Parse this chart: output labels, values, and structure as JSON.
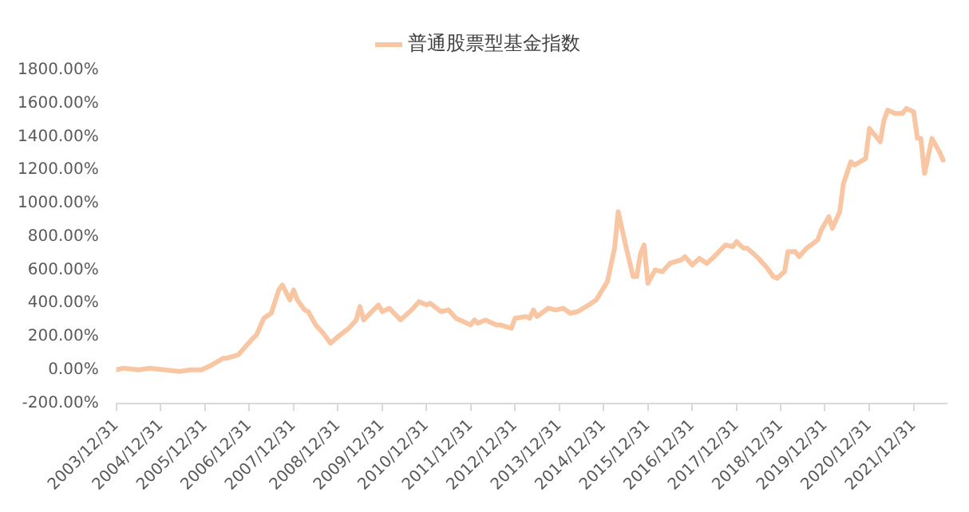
{
  "chart_data": {
    "type": "line",
    "legend": "top",
    "grid": false,
    "marker": "none",
    "line_style": "solid",
    "xlim": [
      "2003-12-31",
      "2022-09-30"
    ],
    "xticks": [
      {
        "value": "2003-12-31",
        "label": "2003/12/31"
      },
      {
        "value": "2004-12-31",
        "label": "2004/12/31"
      },
      {
        "value": "2005-12-31",
        "label": "2005/12/31"
      },
      {
        "value": "2006-12-31",
        "label": "2006/12/31"
      },
      {
        "value": "2007-12-31",
        "label": "2007/12/31"
      },
      {
        "value": "2008-12-31",
        "label": "2008/12/31"
      },
      {
        "value": "2009-12-31",
        "label": "2009/12/31"
      },
      {
        "value": "2010-12-31",
        "label": "2010/12/31"
      },
      {
        "value": "2011-12-31",
        "label": "2011/12/31"
      },
      {
        "value": "2012-12-31",
        "label": "2012/12/31"
      },
      {
        "value": "2013-12-31",
        "label": "2013/12/31"
      },
      {
        "value": "2014-12-31",
        "label": "2014/12/31"
      },
      {
        "value": "2015-12-31",
        "label": "2015/12/31"
      },
      {
        "value": "2016-12-31",
        "label": "2016/12/31"
      },
      {
        "value": "2017-12-31",
        "label": "2017/12/31"
      },
      {
        "value": "2018-12-31",
        "label": "2018/12/31"
      },
      {
        "value": "2019-12-31",
        "label": "2019/12/31"
      },
      {
        "value": "2020-12-31",
        "label": "2020/12/31"
      },
      {
        "value": "2021-12-31",
        "label": "2021/12/31"
      }
    ],
    "ylim": [
      -200,
      1800
    ],
    "yticks": [
      {
        "value": -200,
        "label": "-200.00%"
      },
      {
        "value": 0,
        "label": "0.00%"
      },
      {
        "value": 200,
        "label": "200.00%"
      },
      {
        "value": 400,
        "label": "400.00%"
      },
      {
        "value": 600,
        "label": "600.00%"
      },
      {
        "value": 800,
        "label": "800.00%"
      },
      {
        "value": 1000,
        "label": "1000.00%"
      },
      {
        "value": 1200,
        "label": "1200.00%"
      },
      {
        "value": 1400,
        "label": "1400.00%"
      },
      {
        "value": 1600,
        "label": "1600.00%"
      },
      {
        "value": 1800,
        "label": "1800.00%"
      }
    ],
    "x": [
      "2003-12-31",
      "2004-03",
      "2004-07",
      "2004-10",
      "2005-02",
      "2005-06",
      "2005-09",
      "2005-12",
      "2006-02",
      "2006-06",
      "2006-07",
      "2006-10",
      "2007-02",
      "2007-03",
      "2007-05",
      "2007-07",
      "2007-09",
      "2007-10",
      "2007-12",
      "2008-01",
      "2008-02",
      "2008-04",
      "2008-05",
      "2008-07",
      "2008-09",
      "2008-11",
      "2009-01",
      "2009-04",
      "2009-06",
      "2009-07",
      "2009-08",
      "2009-12",
      "2010-01",
      "2010-03",
      "2010-06",
      "2010-09",
      "2010-11",
      "2011-01",
      "2011-02",
      "2011-05",
      "2011-07",
      "2011-09",
      "2012-01",
      "2012-02",
      "2012-03",
      "2012-05",
      "2012-08",
      "2012-09",
      "2012-12",
      "2013-01",
      "2013-04",
      "2013-05",
      "2013-06",
      "2013-07",
      "2013-10",
      "2013-12",
      "2014-02",
      "2014-04",
      "2014-06",
      "2014-09",
      "2014-11",
      "2015-02",
      "2015-04",
      "2015-05",
      "2015-07",
      "2015-09",
      "2015-10",
      "2015-11",
      "2015-12",
      "2016-01",
      "2016-03",
      "2016-05",
      "2016-07",
      "2016-10",
      "2016-11",
      "2017-01",
      "2017-03",
      "2017-05",
      "2017-07",
      "2017-10",
      "2017-12",
      "2018-01",
      "2018-03",
      "2018-04",
      "2018-07",
      "2018-09",
      "2018-11",
      "2018-12",
      "2019-02",
      "2019-03",
      "2019-05",
      "2019-06",
      "2019-08",
      "2019-11",
      "2019-12",
      "2020-02",
      "2020-03",
      "2020-05",
      "2020-06",
      "2020-08",
      "2020-09",
      "2020-12",
      "2021-01",
      "2021-04",
      "2021-05",
      "2021-06",
      "2021-08",
      "2021-10",
      "2021-11",
      "2022-01",
      "2022-02",
      "2022-03",
      "2022-04",
      "2022-06",
      "2022-08",
      "2022-09"
    ],
    "series": [
      {
        "name": "普通股票型基金指数",
        "color": "#f8c6a2",
        "values": [
          0,
          10,
          0,
          10,
          0,
          -10,
          0,
          0,
          20,
          70,
          70,
          90,
          190,
          210,
          310,
          340,
          480,
          510,
          420,
          480,
          420,
          360,
          350,
          270,
          220,
          160,
          200,
          250,
          300,
          380,
          300,
          390,
          350,
          370,
          300,
          360,
          410,
          390,
          400,
          350,
          360,
          310,
          270,
          300,
          280,
          300,
          270,
          270,
          250,
          310,
          320,
          310,
          360,
          320,
          370,
          360,
          370,
          340,
          350,
          390,
          420,
          530,
          730,
          950,
          750,
          560,
          560,
          700,
          750,
          520,
          600,
          590,
          640,
          660,
          680,
          630,
          670,
          640,
          680,
          750,
          740,
          770,
          730,
          730,
          670,
          620,
          560,
          550,
          590,
          710,
          710,
          680,
          730,
          780,
          840,
          920,
          850,
          950,
          1120,
          1250,
          1230,
          1270,
          1450,
          1370,
          1500,
          1560,
          1540,
          1540,
          1570,
          1550,
          1390,
          1390,
          1180,
          1390,
          1310,
          1260
        ]
      }
    ]
  }
}
